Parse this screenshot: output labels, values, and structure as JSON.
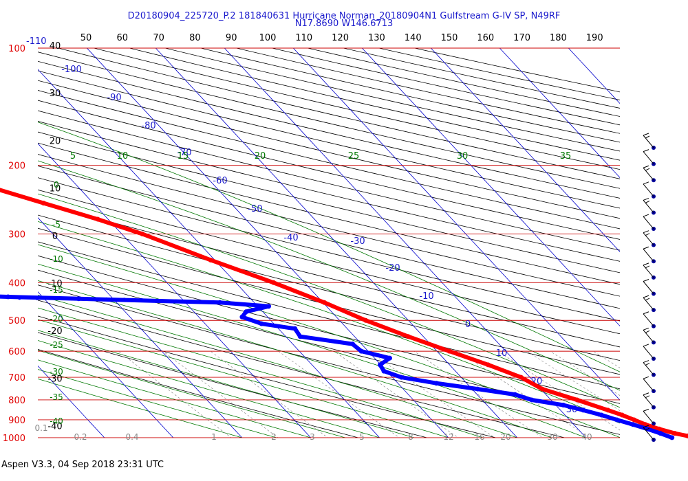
{
  "title_line1": "D20180904_225720_P.2 181840631 Hurricane Norman_20180904N1 Gulfstream G-IV SP, N49RF",
  "title_line2": "N17.8690 W146.6713",
  "footer": "Aspen V3.3, 04 Sep 2018  23:31 UTC",
  "colors": {
    "temperature": "#ff0000",
    "dewpoint": "#0000ff",
    "isobar": "#cc0000",
    "isotherm": "#0000cc",
    "dry_adiabat": "#000000",
    "moist_adiabat": "#007700",
    "mixing_ratio": "#888888",
    "wind_barb": "#000099"
  },
  "chart_data": {
    "type": "skew-t",
    "pressure_axis_labels": [
      "100",
      "200",
      "300",
      "400",
      "500",
      "600",
      "700",
      "800",
      "900",
      "1000"
    ],
    "corner_temp_label": "-110",
    "top_axis_labels": [
      "50",
      "60",
      "70",
      "80",
      "90",
      "100",
      "110",
      "120",
      "130",
      "140",
      "150",
      "160",
      "170",
      "180",
      "190"
    ],
    "height_axis_labels": [
      "40",
      "30",
      "20",
      "10",
      "0",
      "-10",
      "-20",
      "-30",
      "-40"
    ],
    "isotherm_labels": [
      "-100",
      "-90",
      "-80",
      "-70",
      "-60",
      "-50",
      "-40",
      "-30",
      "-20",
      "-10",
      "0",
      "10",
      "20",
      "30"
    ],
    "moist_adiabat_top_labels": [
      "5",
      "10",
      "15",
      "20",
      "25",
      "30",
      "35"
    ],
    "moist_adiabat_left_labels": [
      "0",
      "-5",
      "-10",
      "-15",
      "-20",
      "-25",
      "-30",
      "-35",
      "-40"
    ],
    "mixing_ratio_labels": [
      "0.1",
      "0.2",
      "0.4",
      "1",
      "2",
      "3",
      "5",
      "8",
      "12",
      "16",
      "20",
      "30",
      "40"
    ],
    "temperature_profile": [
      {
        "p": 1000,
        "t": 27.0
      },
      {
        "p": 990,
        "t": 25.0
      },
      {
        "p": 975,
        "t": 23.5
      },
      {
        "p": 950,
        "t": 21.8
      },
      {
        "p": 925,
        "t": 20.4
      },
      {
        "p": 900,
        "t": 19.4
      },
      {
        "p": 875,
        "t": 18.3
      },
      {
        "p": 850,
        "t": 16.9
      },
      {
        "p": 800,
        "t": 13.8
      },
      {
        "p": 750,
        "t": 10.2
      },
      {
        "p": 700,
        "t": 8.7
      },
      {
        "p": 650,
        "t": 5.6
      },
      {
        "p": 600,
        "t": 1.8
      },
      {
        "p": 550,
        "t": -2.2
      },
      {
        "p": 500,
        "t": -6.2
      },
      {
        "p": 450,
        "t": -9.8
      },
      {
        "p": 400,
        "t": -14.5
      },
      {
        "p": 350,
        "t": -20.6
      },
      {
        "p": 300,
        "t": -27.0
      },
      {
        "p": 275,
        "t": -31.5
      },
      {
        "p": 250,
        "t": -37.2
      },
      {
        "p": 225,
        "t": -43.4
      },
      {
        "p": 200,
        "t": -49.5
      },
      {
        "p": 180,
        "t": -54.8
      },
      {
        "p": 169,
        "t": -58.0
      }
    ],
    "dewpoint_profile": [
      {
        "p": 1000,
        "t": 22.5
      },
      {
        "p": 975,
        "t": 21.4
      },
      {
        "p": 950,
        "t": 20.1
      },
      {
        "p": 925,
        "t": 18.6
      },
      {
        "p": 900,
        "t": 16.9
      },
      {
        "p": 875,
        "t": 15.3
      },
      {
        "p": 850,
        "t": 13.3
      },
      {
        "p": 825,
        "t": 11.1
      },
      {
        "p": 800,
        "t": 7.2
      },
      {
        "p": 775,
        "t": 5.5
      },
      {
        "p": 750,
        "t": 0.8
      },
      {
        "p": 725,
        "t": -4.4
      },
      {
        "p": 700,
        "t": -8.7
      },
      {
        "p": 675,
        "t": -10.4
      },
      {
        "p": 650,
        "t": -10.1
      },
      {
        "p": 625,
        "t": -7.8
      },
      {
        "p": 600,
        "t": -11.0
      },
      {
        "p": 575,
        "t": -11.3
      },
      {
        "p": 550,
        "t": -17.9
      },
      {
        "p": 525,
        "t": -17.6
      },
      {
        "p": 510,
        "t": -21.8
      },
      {
        "p": 490,
        "t": -23.7
      },
      {
        "p": 475,
        "t": -22.4
      },
      {
        "p": 460,
        "t": -18.4
      },
      {
        "p": 450,
        "t": -25.0
      },
      {
        "p": 440,
        "t": -45.0
      },
      {
        "p": 435,
        "t": -55.0
      },
      {
        "p": 430,
        "t": -63.8
      },
      {
        "p": 420,
        "t": -62.3
      },
      {
        "p": 400,
        "t": -61.0
      },
      {
        "p": 380,
        "t": -62.5
      },
      {
        "p": 360,
        "t": -59.5
      },
      {
        "p": 345,
        "t": -64.5
      },
      {
        "p": 330,
        "t": -67.8
      },
      {
        "p": 315,
        "t": -70.8
      },
      {
        "p": 300,
        "t": -69.5
      },
      {
        "p": 280,
        "t": -70.6
      },
      {
        "p": 260,
        "t": -70.0
      },
      {
        "p": 240,
        "t": -66.5
      },
      {
        "p": 225,
        "t": -62.7
      },
      {
        "p": 210,
        "t": -68.0
      },
      {
        "p": 200,
        "t": -72.5
      }
    ],
    "dewpoint_dropout_points": [
      {
        "p": 443,
        "t": -36.0
      },
      {
        "p": 442,
        "t": -38.5
      },
      {
        "p": 441,
        "t": -41.0
      },
      {
        "p": 441,
        "t": -43.5
      },
      {
        "p": 440,
        "t": -46.0
      },
      {
        "p": 439,
        "t": -48.5
      },
      {
        "p": 439,
        "t": -51.0
      },
      {
        "p": 438,
        "t": -53.5
      },
      {
        "p": 437,
        "t": -56.5
      },
      {
        "p": 436,
        "t": -60.0
      },
      {
        "p": 435,
        "t": -62.5
      },
      {
        "p": 433,
        "t": -65.0
      },
      {
        "p": 432,
        "t": -67.5
      }
    ],
    "isolated_temperature_point": {
      "p": 165,
      "t": -66.0
    },
    "wind_barb_pressures": [
      1000,
      950,
      900,
      850,
      800,
      750,
      700,
      650,
      600,
      550,
      500,
      450,
      400,
      350,
      300,
      275,
      250,
      225,
      200
    ]
  }
}
